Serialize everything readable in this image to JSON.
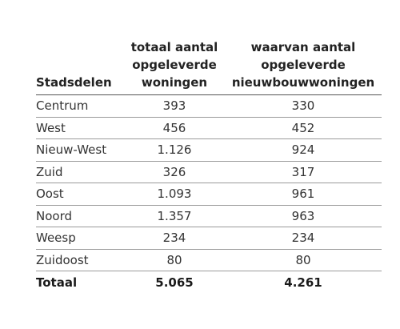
{
  "table": {
    "headers": {
      "col1": "Stadsdelen",
      "col2": [
        "totaal aantal",
        "opgeleverde",
        "woningen"
      ],
      "col3": [
        "waarvan aantal",
        "opgeleverde",
        "nieuwbouwwoningen"
      ]
    },
    "rows": [
      {
        "stadsdeel": "Centrum",
        "totaal": "393",
        "nieuwbouw": "330"
      },
      {
        "stadsdeel": "West",
        "totaal": "456",
        "nieuwbouw": "452"
      },
      {
        "stadsdeel": "Nieuw-West",
        "totaal": "1.126",
        "nieuwbouw": "924"
      },
      {
        "stadsdeel": "Zuid",
        "totaal": "326",
        "nieuwbouw": "317"
      },
      {
        "stadsdeel": "Oost",
        "totaal": "1.093",
        "nieuwbouw": "961"
      },
      {
        "stadsdeel": "Noord",
        "totaal": "1.357",
        "nieuwbouw": "963"
      },
      {
        "stadsdeel": "Weesp",
        "totaal": "234",
        "nieuwbouw": "234"
      },
      {
        "stadsdeel": "Zuidoost",
        "totaal": "80",
        "nieuwbouw": "80"
      }
    ],
    "total": {
      "stadsdeel": "Totaal",
      "totaal": "5.065",
      "nieuwbouw": "4.261"
    }
  }
}
